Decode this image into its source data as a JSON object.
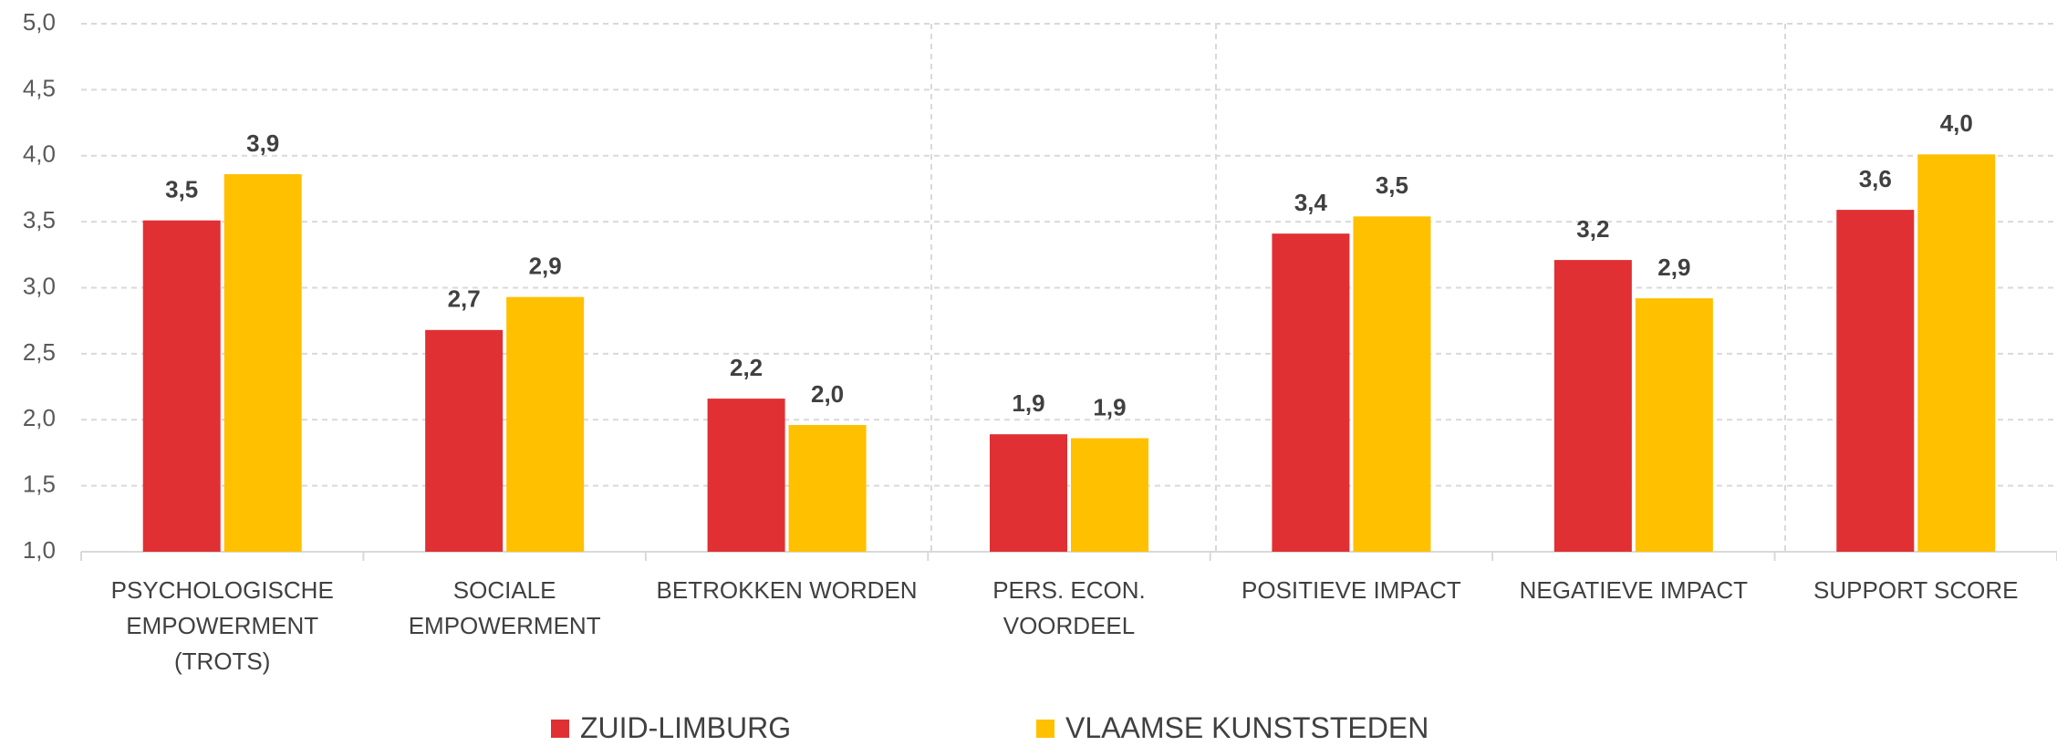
{
  "chart_data": {
    "type": "bar",
    "categories": [
      "PSYCHOLOGISCHE EMPOWERMENT (TROTS)",
      "SOCIALE EMPOWERMENT",
      "BETROKKEN WORDEN",
      "PERS. ECON. VOORDEEL",
      "POSITIEVE IMPACT",
      "NEGATIEVE IMPACT",
      "SUPPORT SCORE"
    ],
    "series": [
      {
        "name": "ZUID-LIMBURG",
        "color": "#e03034",
        "values": [
          3.51,
          2.68,
          2.16,
          1.89,
          3.41,
          3.21,
          3.59
        ],
        "value_labels": [
          "3,5",
          "2,7",
          "2,2",
          "1,9",
          "3,4",
          "3,2",
          "3,6"
        ]
      },
      {
        "name": "VLAAMSE KUNSTSTEDEN",
        "color": "#ffc000",
        "values": [
          3.86,
          2.93,
          1.96,
          1.86,
          3.54,
          2.92,
          4.01
        ],
        "value_labels": [
          "3,9",
          "2,9",
          "2,0",
          "1,9",
          "3,5",
          "2,9",
          "4,0"
        ]
      }
    ],
    "ylim": [
      1.0,
      5.0
    ],
    "yticks": [
      {
        "value": 1.0,
        "label": "1,0"
      },
      {
        "value": 1.5,
        "label": "1,5"
      },
      {
        "value": 2.0,
        "label": "2,0"
      },
      {
        "value": 2.5,
        "label": "2,5"
      },
      {
        "value": 3.0,
        "label": "3,0"
      },
      {
        "value": 3.5,
        "label": "3,5"
      },
      {
        "value": 4.0,
        "label": "4,0"
      },
      {
        "value": 4.5,
        "label": "4,5"
      },
      {
        "value": 5.0,
        "label": "5,0"
      }
    ],
    "grid": true
  }
}
